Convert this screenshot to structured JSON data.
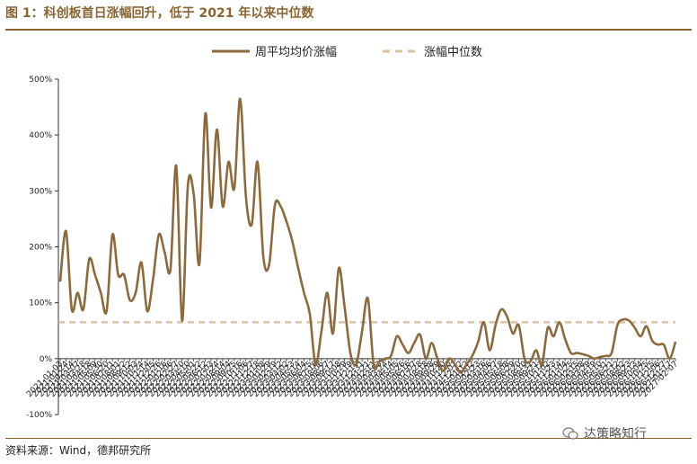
{
  "header": {
    "title": "图 1：科创板首日涨幅回升，低于 2021 年以来中位数"
  },
  "footer": {
    "source": "资料来源：Wind，德邦研究所",
    "watermark": "达策略知行"
  },
  "colors": {
    "accent": "#8b6430",
    "series_line": "#8c6a3c",
    "median_line": "#d9c3a3"
  },
  "chart_data": {
    "type": "line",
    "series": [
      {
        "name": "周平均均价涨幅",
        "y": [
          138,
          228,
          88,
          118,
          88,
          178,
          150,
          118,
          85,
          222,
          150,
          150,
          105,
          118,
          172,
          85,
          142,
          222,
          190,
          160,
          345,
          68,
          310,
          295,
          170,
          438,
          270,
          410,
          272,
          352,
          305,
          465,
          290,
          240,
          352,
          182,
          168,
          275,
          272,
          245,
          210,
          162,
          118,
          80,
          -10,
          48,
          118,
          45,
          162,
          92,
          10,
          -10,
          48,
          108,
          -10,
          -5,
          0,
          5,
          40,
          25,
          10,
          28,
          43,
          0,
          28,
          0,
          -22,
          0,
          -10,
          -25,
          -10,
          5,
          30,
          65,
          15,
          60,
          88,
          75,
          45,
          60,
          0,
          -5,
          15,
          -10,
          55,
          40,
          65,
          35,
          10,
          10,
          8,
          5,
          0,
          3,
          5,
          10,
          60,
          70,
          68,
          55,
          40,
          58,
          32,
          25,
          25,
          0,
          30
        ]
      },
      {
        "name": "涨幅中位数",
        "value": 65
      }
    ],
    "x_labels": [
      "2021-01-03",
      "2021-01-24",
      "2021-02-14",
      "2021-03-07",
      "2021-03-28",
      "2021-04-18",
      "2021-05-09",
      "2021-05-30",
      "2021-06-20",
      "2021-07-11",
      "2021-08-01",
      "2021-08-22",
      "2021-09-12",
      "2021-10-03",
      "2021-10-24",
      "2021-11-14",
      "2021-12-05",
      "2021-12-26",
      "2022-01-16",
      "2022-02-06",
      "2022-02-27",
      "2022-03-20",
      "2022-04-10",
      "2022-05-01",
      "2022-05-22",
      "2022-06-12",
      "2022-07-03",
      "2022-07-24",
      "2022-08-14",
      "2022-09-04",
      "2022-09-25",
      "2022-10-16",
      "2022-11-06",
      "2022-11-27",
      "2022-12-18",
      "2023-01-08",
      "2023-01-29",
      "2023-02-19",
      "2023-03-12",
      "2023-04-02",
      "2023-04-23",
      "2023-05-14",
      "2023-06-04",
      "2023-06-25",
      "2023-07-16",
      "2023-08-06",
      "2023-08-27",
      "2023-09-17",
      "2023-10-08",
      "2023-10-29",
      "2023-11-19",
      "2023-12-10",
      "2023-12-31",
      "2024-01-21",
      "2024-02-11",
      "2024-03-03",
      "2024-03-24",
      "2024-04-14",
      "2024-05-05",
      "2024-05-26",
      "2024-06-16",
      "2024-07-07",
      "2024-07-28",
      "2024-08-18",
      "2024-09-08",
      "2024-09-29",
      "2024-10-20",
      "2024-11-10",
      "2024-12-01",
      "2024-12-22",
      "2025-01-12",
      "2025-02-02",
      "2025-02-23",
      "2025-03-16",
      "2025-04-06",
      "2025-04-27",
      "2025-05-18",
      "2025-06-08",
      "2025-06-29",
      "2025-07-20",
      "2025-08-10",
      "2025-08-31",
      "2025-09-21",
      "2025-10-12",
      "2025-11-02",
      "2025-11-23",
      "2025-12-14",
      "2026-01-04",
      "2026-01-25",
      "2026-02-15",
      "2026-03-08",
      "2026-03-29",
      "2026-04-19",
      "2026-05-10",
      "2026-05-31",
      "2026-06-21",
      "2026-07-12",
      "2026-08-02",
      "2026-08-23",
      "2026-09-13",
      "2026-10-04",
      "2026-10-25",
      "2026-11-15",
      "2026-12-06",
      "2026-12-27",
      "2027-01-17",
      "2027-02-07"
    ],
    "y_ticks": [
      "500%",
      "400%",
      "300%",
      "200%",
      "100%",
      "0%",
      "-100%"
    ],
    "y_tick_values": [
      500,
      400,
      300,
      200,
      100,
      0,
      -100
    ],
    "ylim": [
      -100,
      500
    ],
    "legend": [
      "周平均均价涨幅",
      "涨幅中位数"
    ],
    "legend_position": "top",
    "grid": false
  }
}
